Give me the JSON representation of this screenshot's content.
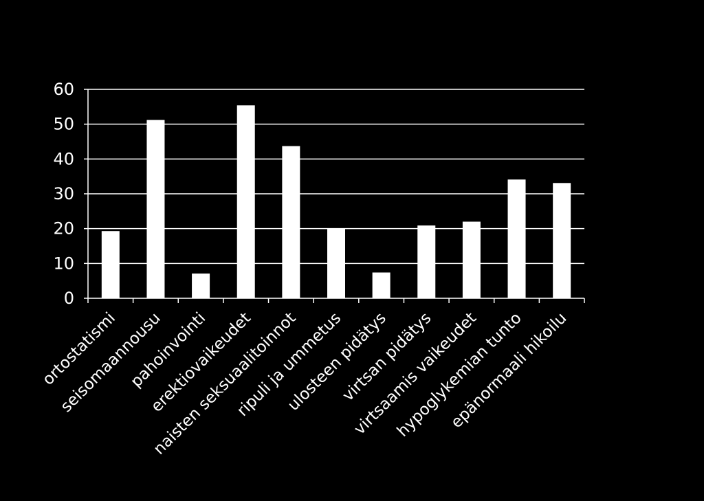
{
  "chart_data": {
    "type": "bar",
    "title": "",
    "xlabel": "",
    "ylabel": "",
    "categories": [
      "ortostatismi",
      "seisomaannousu",
      "pahoinvointi",
      "erektiovaikeudet",
      "naisten seksuaalitoinnot",
      "ripuli ja ummetus",
      "ulosteen pidätys",
      "virtsan pidätys",
      "virtsaamis vaikeudet",
      "hypoglykemian tunto",
      "epänormaali hikoilu"
    ],
    "values": [
      19.3,
      51.2,
      7.1,
      55.4,
      43.7,
      20.1,
      7.4,
      20.9,
      22.0,
      34.1,
      33.1
    ],
    "ylim": [
      0,
      60
    ],
    "yticks": [
      "0",
      "10",
      "20",
      "30",
      "40",
      "50",
      "60"
    ],
    "grid": true,
    "legend": "none",
    "colors": {
      "background": "#000000",
      "bar": "#ffffff",
      "axis": "#ffffff"
    }
  }
}
